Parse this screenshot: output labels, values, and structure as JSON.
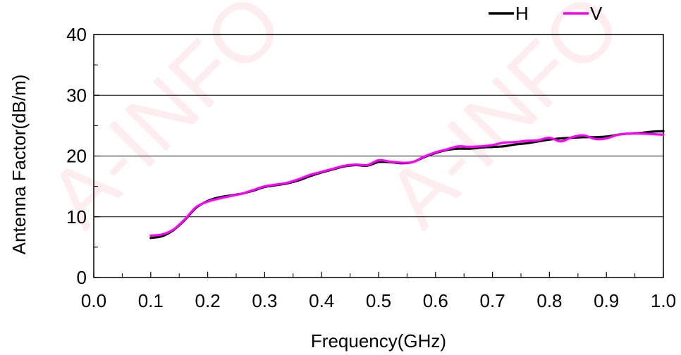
{
  "watermark": "A-INFO",
  "chart_data": {
    "type": "line",
    "title": "",
    "xlabel": "Frequency(GHz)",
    "ylabel": "Antenna Factor(dB/m)",
    "xlim": [
      0.0,
      1.0
    ],
    "ylim": [
      0,
      40
    ],
    "x_ticks": [
      "0.0",
      "0.1",
      "0.2",
      "0.3",
      "0.4",
      "0.5",
      "0.6",
      "0.7",
      "0.8",
      "0.9",
      "1.0"
    ],
    "y_ticks": [
      "0",
      "10",
      "20",
      "30",
      "40"
    ],
    "grid": "horizontal",
    "legend_position": "top-right",
    "x": [
      0.1,
      0.12,
      0.14,
      0.16,
      0.18,
      0.2,
      0.22,
      0.24,
      0.26,
      0.28,
      0.3,
      0.32,
      0.34,
      0.36,
      0.38,
      0.4,
      0.42,
      0.44,
      0.46,
      0.48,
      0.5,
      0.52,
      0.54,
      0.56,
      0.58,
      0.6,
      0.62,
      0.64,
      0.66,
      0.68,
      0.7,
      0.72,
      0.74,
      0.76,
      0.78,
      0.8,
      0.82,
      0.84,
      0.86,
      0.88,
      0.9,
      0.92,
      0.94,
      0.96,
      0.98,
      1.0
    ],
    "series": [
      {
        "name": "H",
        "color": "#000000",
        "values": [
          6.5,
          6.8,
          7.8,
          9.5,
          11.5,
          12.6,
          13.2,
          13.5,
          13.8,
          14.3,
          14.9,
          15.2,
          15.5,
          16.0,
          16.7,
          17.3,
          17.8,
          18.3,
          18.5,
          18.4,
          19.0,
          19.0,
          18.8,
          19.0,
          19.8,
          20.5,
          21.0,
          21.2,
          21.2,
          21.4,
          21.5,
          21.6,
          21.9,
          22.1,
          22.4,
          22.7,
          22.9,
          23.0,
          23.1,
          23.1,
          23.2,
          23.5,
          23.7,
          23.8,
          24.0,
          24.1
        ]
      },
      {
        "name": "V",
        "color": "#ff00ff",
        "values": [
          6.9,
          7.1,
          7.9,
          9.6,
          11.6,
          12.5,
          13.0,
          13.4,
          13.8,
          14.4,
          15.0,
          15.3,
          15.6,
          16.2,
          16.9,
          17.4,
          17.9,
          18.4,
          18.6,
          18.5,
          19.3,
          19.1,
          18.9,
          19.0,
          19.9,
          20.6,
          21.1,
          21.6,
          21.5,
          21.6,
          21.8,
          22.2,
          22.3,
          22.5,
          22.6,
          23.0,
          22.4,
          23.1,
          23.4,
          22.8,
          22.9,
          23.5,
          23.7,
          23.7,
          23.6,
          23.5
        ]
      }
    ]
  }
}
